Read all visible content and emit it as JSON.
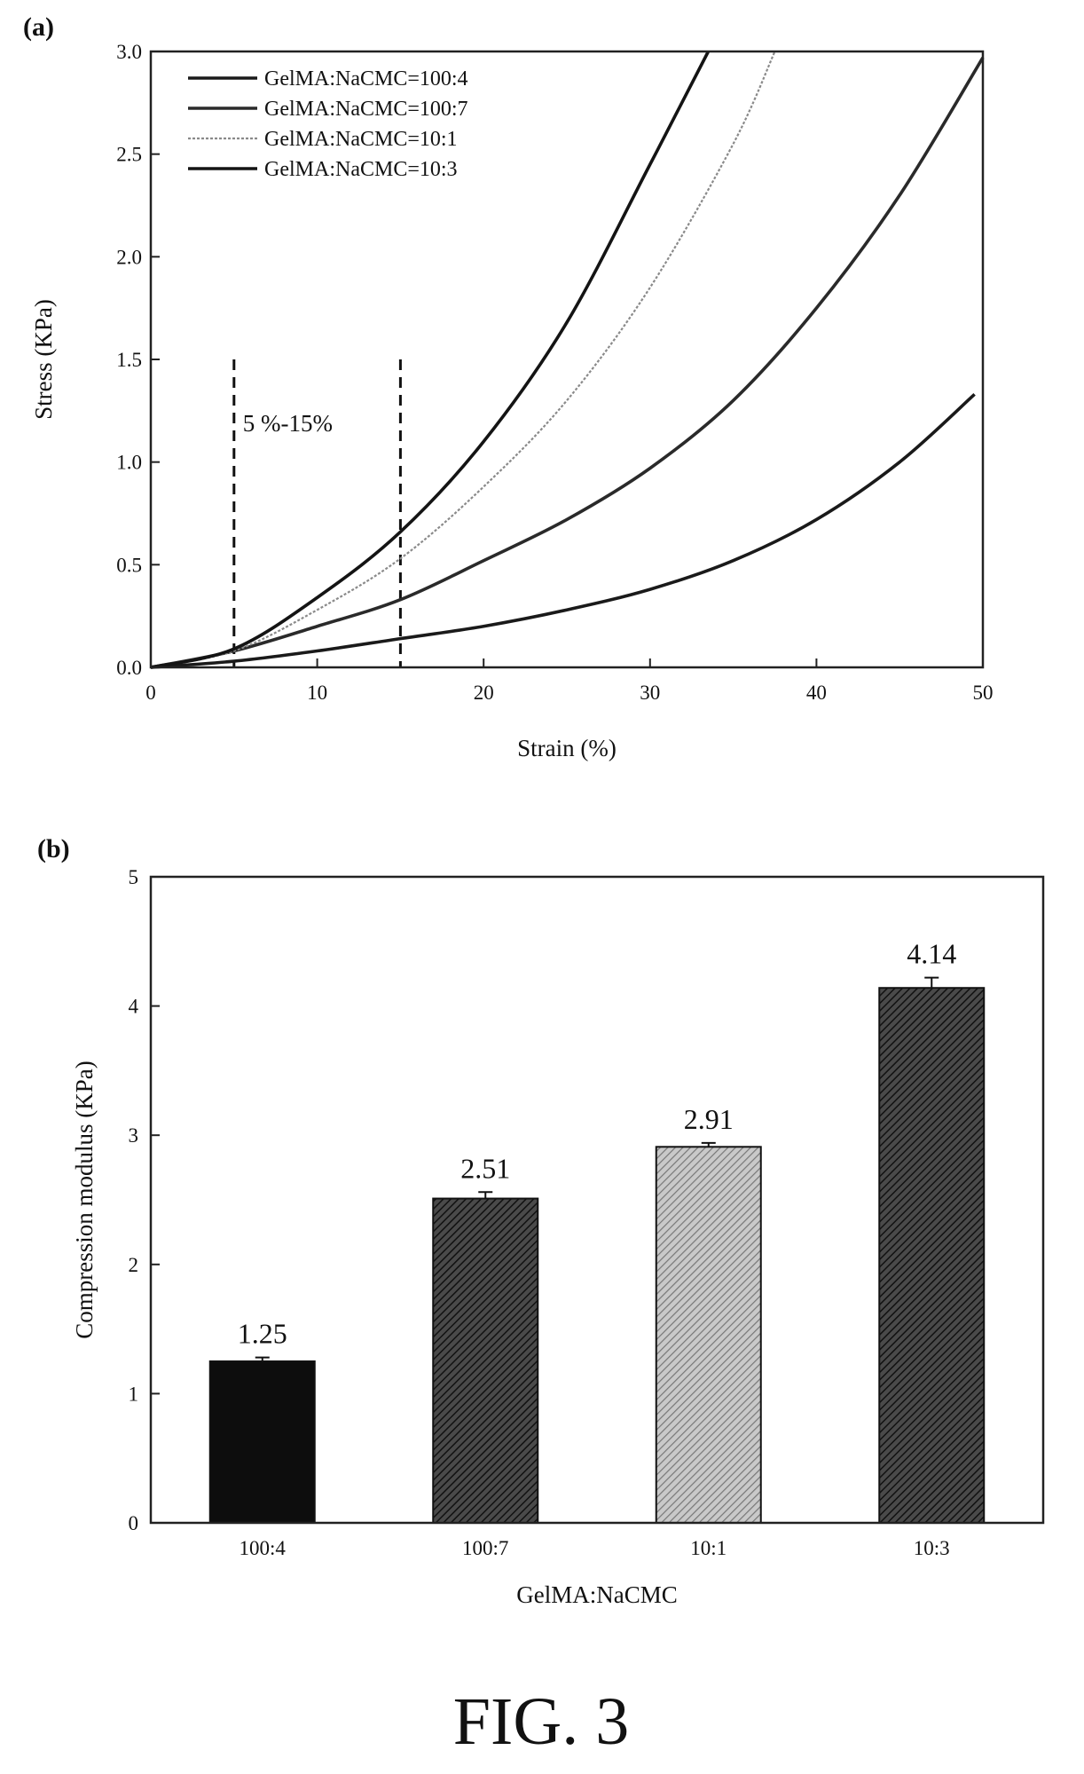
{
  "figure": {
    "caption": "FIG. 3"
  },
  "chart_data": [
    {
      "panel": "(a)",
      "type": "line",
      "xlabel": "Strain (%)",
      "ylabel": "Stress (KPa)",
      "xlim": [
        0,
        50
      ],
      "ylim": [
        0,
        3.0
      ],
      "xticks": [
        0,
        10,
        20,
        30,
        40,
        50
      ],
      "yticks": [
        0.0,
        0.5,
        1.0,
        1.5,
        2.0,
        2.5,
        3.0
      ],
      "xtick_labels": [
        "0",
        "10",
        "20",
        "30",
        "40",
        "50"
      ],
      "ytick_labels": [
        "0.0",
        "0.5",
        "1.0",
        "1.5",
        "2.0",
        "2.5",
        "3.0"
      ],
      "legend_position": "top-left",
      "annotation": {
        "text": "5 %-15%",
        "x_range": [
          5,
          15
        ]
      },
      "series": [
        {
          "name": "GelMA:NaCMC=100:4",
          "color": "#1a1a1a",
          "x": [
            0,
            5,
            10,
            15,
            20,
            25,
            30,
            35,
            40,
            45,
            49.5
          ],
          "y": [
            0,
            0.03,
            0.08,
            0.14,
            0.2,
            0.28,
            0.38,
            0.52,
            0.72,
            1.0,
            1.33
          ]
        },
        {
          "name": "GelMA:NaCMC=100:7",
          "color": "#2a2a2a",
          "x": [
            0,
            5,
            10,
            15,
            20,
            25,
            30,
            35,
            40,
            45,
            50
          ],
          "y": [
            0,
            0.08,
            0.2,
            0.33,
            0.52,
            0.72,
            0.97,
            1.3,
            1.75,
            2.3,
            2.97
          ]
        },
        {
          "name": "GelMA:NaCMC=10:1",
          "color": "#8a8a8a",
          "x": [
            0,
            5,
            10,
            15,
            20,
            25,
            30,
            35,
            37.5
          ],
          "y": [
            0,
            0.08,
            0.28,
            0.53,
            0.88,
            1.3,
            1.85,
            2.55,
            3.0
          ]
        },
        {
          "name": "GelMA:NaCMC=10:3",
          "color": "#141414",
          "x": [
            0,
            5,
            10,
            15,
            20,
            25,
            30,
            33.5
          ],
          "y": [
            0,
            0.09,
            0.34,
            0.66,
            1.1,
            1.68,
            2.45,
            3.0
          ]
        }
      ]
    },
    {
      "panel": "(b)",
      "type": "bar",
      "xlabel": "GelMA:NaCMC",
      "ylabel": "Compression modulus (KPa)",
      "ylim": [
        0,
        5
      ],
      "yticks": [
        0,
        1,
        2,
        3,
        4,
        5
      ],
      "ytick_labels": [
        "0",
        "1",
        "2",
        "3",
        "4",
        "5"
      ],
      "categories": [
        "100:4",
        "100:7",
        "10:1",
        "10:3"
      ],
      "values": [
        1.25,
        2.51,
        2.91,
        4.14
      ],
      "value_labels": [
        "1.25",
        "2.51",
        "2.91",
        "4.14"
      ],
      "errors": [
        0.03,
        0.05,
        0.03,
        0.08
      ],
      "bar_fills": [
        "#0d0d0d",
        "#2e2e2e",
        "#a8a8a8",
        "#3a3a3a"
      ],
      "bar_hatches": [
        "none",
        "dense",
        "light",
        "dense"
      ]
    }
  ]
}
